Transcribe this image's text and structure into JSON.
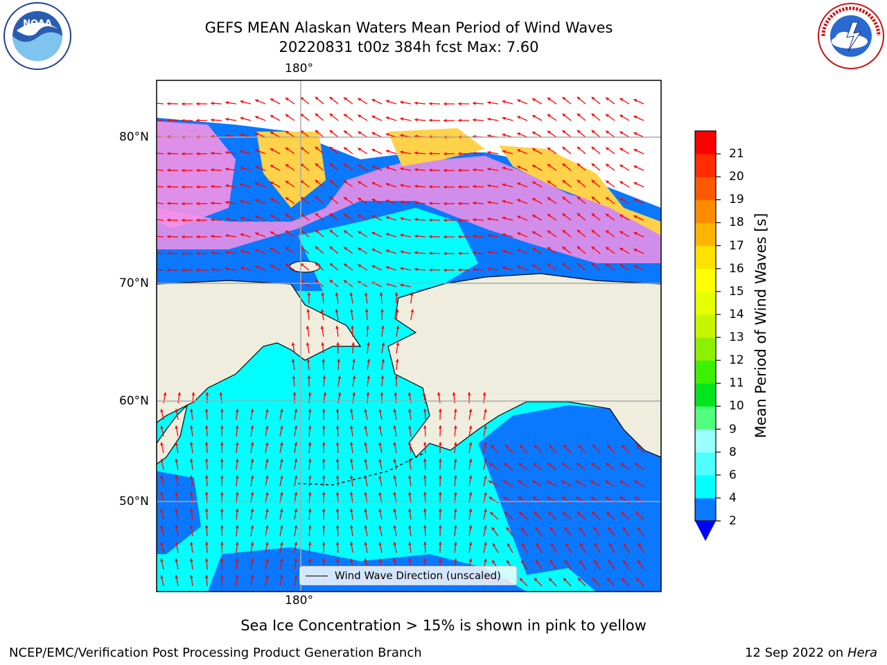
{
  "title": {
    "line1": "GEFS MEAN Alaskan Waters Mean Period of Wind Waves",
    "line2": "20220831 t00z 384h fcst   Max: 7.60"
  },
  "logos": {
    "noaa": {
      "icon": "noaa-logo-icon",
      "text": "NOAA",
      "ring_text": "NATIONAL OCEANIC AND ATMOSPHERIC ADMINISTRATION · U.S. DEPARTMENT OF COMMERCE"
    },
    "nws": {
      "icon": "nws-logo-icon",
      "ring_text": "NATIONAL WEATHER SERVICE"
    }
  },
  "map": {
    "lon_label_top": "180°",
    "lon_label_bottom": "180°",
    "lat_labels": [
      "80°N",
      "70°N",
      "60°N",
      "50°N"
    ],
    "colors": {
      "land": "#efedde",
      "ice_pink": "#f591e6",
      "ice_yellow": "#ffd24a",
      "arrow": "#ff0000",
      "grid": "#aaaaaa"
    },
    "legend": {
      "label": "Wind Wave Direction (unscaled)"
    }
  },
  "colorbar": {
    "label": "Mean Period of Wind Waves [s]",
    "ticks": [
      "2",
      "4",
      "6",
      "8",
      "9",
      "10",
      "11",
      "12",
      "13",
      "14",
      "15",
      "16",
      "17",
      "18",
      "19",
      "20",
      "21"
    ],
    "colors": [
      "#0a78ff",
      "#00ffff",
      "#4dffff",
      "#9bffff",
      "#50ff7d",
      "#00e61e",
      "#3cf000",
      "#8cf000",
      "#c8f500",
      "#e6ff00",
      "#ffff00",
      "#ffe100",
      "#ffb400",
      "#ff8c00",
      "#ff5a00",
      "#ff2d00",
      "#ff0000"
    ],
    "under_color": "#0000ff"
  },
  "footnote": "Sea Ice Concentration > 15% is shown in pink to yellow",
  "credit": {
    "left": "NCEP/EMC/Verification Post Processing Product Generation Branch",
    "right_date": "12 Sep 2022 on",
    "right_machine": "Hera"
  }
}
